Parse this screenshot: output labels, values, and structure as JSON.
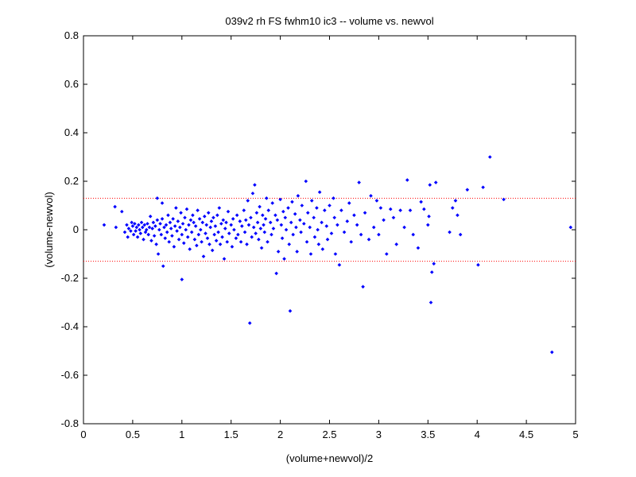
{
  "chart_data": {
    "type": "scatter",
    "title": "039v2 rh FS fwhm10 ic3 -- volume vs. newvol",
    "xlabel": "(volume+newvol)/2",
    "ylabel": "(volume-newvol)",
    "xlim": [
      0,
      5
    ],
    "ylim": [
      -0.8,
      0.8
    ],
    "xticks": [
      0,
      0.5,
      1,
      1.5,
      2,
      2.5,
      3,
      3.5,
      4,
      4.5,
      5
    ],
    "xtick_labels": [
      "0",
      "0.5",
      "1",
      "1.5",
      "2",
      "2.5",
      "3",
      "3.5",
      "4",
      "4.5",
      "5"
    ],
    "yticks": [
      -0.8,
      -0.6,
      -0.4,
      -0.2,
      0,
      0.2,
      0.4,
      0.6,
      0.8
    ],
    "ytick_labels": [
      "-0.8",
      "-0.6",
      "-0.4",
      "-0.2",
      "0",
      "0.2",
      "0.4",
      "0.6",
      "0.8"
    ],
    "grid": false,
    "marker_color": "#0000ff",
    "reference_line_color": "#ff0000",
    "reference_lines": [
      0.13,
      -0.13
    ],
    "points": [
      [
        0.21,
        0.02
      ],
      [
        0.32,
        0.095
      ],
      [
        0.33,
        0.01
      ],
      [
        0.39,
        0.075
      ],
      [
        0.42,
        -0.01
      ],
      [
        0.44,
        0.02
      ],
      [
        0.45,
        -0.03
      ],
      [
        0.46,
        0.005
      ],
      [
        0.48,
        -0.005
      ],
      [
        0.49,
        0.03
      ],
      [
        0.5,
        0.015
      ],
      [
        0.51,
        -0.02
      ],
      [
        0.52,
        0.025
      ],
      [
        0.53,
        -0.005
      ],
      [
        0.54,
        0.01
      ],
      [
        0.55,
        -0.03
      ],
      [
        0.56,
        0.02
      ],
      [
        0.57,
        0.0
      ],
      [
        0.58,
        -0.015
      ],
      [
        0.59,
        0.03
      ],
      [
        0.6,
        0.01
      ],
      [
        0.61,
        -0.04
      ],
      [
        0.62,
        0.02
      ],
      [
        0.63,
        -0.01
      ],
      [
        0.64,
        0.0
      ],
      [
        0.65,
        0.025
      ],
      [
        0.66,
        -0.02
      ],
      [
        0.67,
        0.01
      ],
      [
        0.68,
        0.055
      ],
      [
        0.69,
        -0.045
      ],
      [
        0.7,
        0.005
      ],
      [
        0.71,
        0.03
      ],
      [
        0.72,
        -0.025
      ],
      [
        0.73,
        0.015
      ],
      [
        0.74,
        -0.06
      ],
      [
        0.75,
        0.13
      ],
      [
        0.75,
        0.04
      ],
      [
        0.76,
        -0.1
      ],
      [
        0.77,
        0.0
      ],
      [
        0.78,
        0.025
      ],
      [
        0.79,
        -0.02
      ],
      [
        0.8,
        0.11
      ],
      [
        0.8,
        0.045
      ],
      [
        0.81,
        -0.15
      ],
      [
        0.82,
        0.01
      ],
      [
        0.83,
        -0.035
      ],
      [
        0.84,
        0.02
      ],
      [
        0.85,
        -0.01
      ],
      [
        0.86,
        0.06
      ],
      [
        0.87,
        -0.05
      ],
      [
        0.88,
        0.03
      ],
      [
        0.89,
        0.005
      ],
      [
        0.9,
        -0.025
      ],
      [
        0.91,
        0.045
      ],
      [
        0.92,
        -0.07
      ],
      [
        0.93,
        0.015
      ],
      [
        0.94,
        0.09
      ],
      [
        0.95,
        -0.005
      ],
      [
        0.96,
        0.035
      ],
      [
        0.97,
        -0.04
      ],
      [
        0.98,
        0.01
      ],
      [
        0.99,
        0.07
      ],
      [
        1.0,
        -0.02
      ],
      [
        1.0,
        -0.205
      ],
      [
        1.01,
        0.025
      ],
      [
        1.02,
        -0.055
      ],
      [
        1.03,
        0.05
      ],
      [
        1.04,
        0.0
      ],
      [
        1.05,
        0.085
      ],
      [
        1.06,
        -0.03
      ],
      [
        1.07,
        0.02
      ],
      [
        1.08,
        -0.08
      ],
      [
        1.09,
        0.04
      ],
      [
        1.1,
        -0.01
      ],
      [
        1.11,
        0.06
      ],
      [
        1.12,
        0.03
      ],
      [
        1.13,
        -0.04
      ],
      [
        1.14,
        0.015
      ],
      [
        1.15,
        -0.065
      ],
      [
        1.16,
        0.08
      ],
      [
        1.17,
        -0.02
      ],
      [
        1.18,
        0.045
      ],
      [
        1.19,
        0.0
      ],
      [
        1.2,
        -0.05
      ],
      [
        1.21,
        0.03
      ],
      [
        1.22,
        -0.11
      ],
      [
        1.23,
        0.055
      ],
      [
        1.24,
        -0.015
      ],
      [
        1.25,
        0.02
      ],
      [
        1.26,
        -0.035
      ],
      [
        1.27,
        0.07
      ],
      [
        1.28,
        -0.06
      ],
      [
        1.29,
        0.01
      ],
      [
        1.3,
        0.035
      ],
      [
        1.31,
        -0.085
      ],
      [
        1.32,
        0.05
      ],
      [
        1.33,
        -0.02
      ],
      [
        1.34,
        0.015
      ],
      [
        1.35,
        -0.045
      ],
      [
        1.36,
        0.06
      ],
      [
        1.37,
        -0.01
      ],
      [
        1.38,
        0.09
      ],
      [
        1.39,
        -0.06
      ],
      [
        1.4,
        0.025
      ],
      [
        1.41,
        -0.03
      ],
      [
        1.42,
        0.04
      ],
      [
        1.43,
        -0.12
      ],
      [
        1.44,
        0.005
      ],
      [
        1.45,
        0.03
      ],
      [
        1.46,
        -0.05
      ],
      [
        1.47,
        0.075
      ],
      [
        1.48,
        -0.015
      ],
      [
        1.5,
        0.02
      ],
      [
        1.51,
        -0.07
      ],
      [
        1.52,
        0.045
      ],
      [
        1.53,
        0.0
      ],
      [
        1.55,
        -0.035
      ],
      [
        1.56,
        0.06
      ],
      [
        1.57,
        -0.02
      ],
      [
        1.59,
        0.035
      ],
      [
        1.6,
        -0.05
      ],
      [
        1.61,
        0.015
      ],
      [
        1.63,
        0.08
      ],
      [
        1.64,
        -0.01
      ],
      [
        1.65,
        0.04
      ],
      [
        1.66,
        -0.06
      ],
      [
        1.67,
        0.12
      ],
      [
        1.68,
        0.02
      ],
      [
        1.69,
        -0.385
      ],
      [
        1.7,
        0.05
      ],
      [
        1.71,
        -0.03
      ],
      [
        1.72,
        0.15
      ],
      [
        1.73,
        0.01
      ],
      [
        1.74,
        0.185
      ],
      [
        1.75,
        -0.015
      ],
      [
        1.76,
        0.07
      ],
      [
        1.77,
        0.03
      ],
      [
        1.78,
        -0.04
      ],
      [
        1.79,
        0.095
      ],
      [
        1.8,
        0.005
      ],
      [
        1.81,
        -0.075
      ],
      [
        1.82,
        0.06
      ],
      [
        1.83,
        0.02
      ],
      [
        1.84,
        -0.01
      ],
      [
        1.85,
        0.045
      ],
      [
        1.86,
        0.13
      ],
      [
        1.87,
        -0.05
      ],
      [
        1.88,
        0.08
      ],
      [
        1.9,
        0.03
      ],
      [
        1.91,
        -0.02
      ],
      [
        1.92,
        0.11
      ],
      [
        1.93,
        0.005
      ],
      [
        1.95,
        0.06
      ],
      [
        1.96,
        -0.18
      ],
      [
        1.97,
        0.04
      ],
      [
        1.98,
        -0.09
      ],
      [
        2.0,
        0.125
      ],
      [
        2.01,
        0.02
      ],
      [
        2.02,
        -0.035
      ],
      [
        2.03,
        0.075
      ],
      [
        2.04,
        -0.12
      ],
      [
        2.05,
        0.05
      ],
      [
        2.06,
        0.0
      ],
      [
        2.08,
        0.09
      ],
      [
        2.09,
        -0.06
      ],
      [
        2.1,
        -0.335
      ],
      [
        2.11,
        0.03
      ],
      [
        2.12,
        0.115
      ],
      [
        2.13,
        -0.02
      ],
      [
        2.15,
        0.065
      ],
      [
        2.16,
        0.01
      ],
      [
        2.17,
        -0.09
      ],
      [
        2.18,
        0.14
      ],
      [
        2.2,
        0.04
      ],
      [
        2.21,
        -0.01
      ],
      [
        2.22,
        0.1
      ],
      [
        2.24,
        0.025
      ],
      [
        2.26,
        0.2
      ],
      [
        2.27,
        -0.05
      ],
      [
        2.28,
        0.07
      ],
      [
        2.3,
        0.01
      ],
      [
        2.31,
        -0.1
      ],
      [
        2.32,
        0.12
      ],
      [
        2.34,
        0.05
      ],
      [
        2.35,
        -0.03
      ],
      [
        2.37,
        0.09
      ],
      [
        2.38,
        0.0
      ],
      [
        2.39,
        -0.06
      ],
      [
        2.4,
        0.155
      ],
      [
        2.42,
        0.03
      ],
      [
        2.43,
        -0.08
      ],
      [
        2.45,
        0.08
      ],
      [
        2.47,
        0.015
      ],
      [
        2.48,
        -0.04
      ],
      [
        2.5,
        0.1
      ],
      [
        2.52,
        -0.015
      ],
      [
        2.54,
        0.13
      ],
      [
        2.55,
        0.05
      ],
      [
        2.56,
        -0.1
      ],
      [
        2.58,
        0.02
      ],
      [
        2.6,
        -0.145
      ],
      [
        2.62,
        0.08
      ],
      [
        2.65,
        -0.01
      ],
      [
        2.68,
        0.035
      ],
      [
        2.7,
        0.11
      ],
      [
        2.72,
        -0.05
      ],
      [
        2.75,
        0.06
      ],
      [
        2.78,
        0.02
      ],
      [
        2.8,
        0.195
      ],
      [
        2.82,
        -0.02
      ],
      [
        2.84,
        -0.235
      ],
      [
        2.86,
        0.07
      ],
      [
        2.9,
        -0.04
      ],
      [
        2.92,
        0.14
      ],
      [
        2.95,
        0.01
      ],
      [
        2.98,
        0.12
      ],
      [
        3.0,
        -0.02
      ],
      [
        3.02,
        0.09
      ],
      [
        3.05,
        0.04
      ],
      [
        3.08,
        -0.1
      ],
      [
        3.12,
        0.085
      ],
      [
        3.15,
        0.05
      ],
      [
        3.18,
        -0.06
      ],
      [
        3.22,
        0.08
      ],
      [
        3.26,
        0.01
      ],
      [
        3.29,
        0.205
      ],
      [
        3.32,
        0.08
      ],
      [
        3.35,
        -0.02
      ],
      [
        3.4,
        -0.075
      ],
      [
        3.43,
        0.115
      ],
      [
        3.46,
        0.085
      ],
      [
        3.5,
        0.02
      ],
      [
        3.51,
        0.055
      ],
      [
        3.52,
        0.185
      ],
      [
        3.53,
        -0.3
      ],
      [
        3.54,
        -0.175
      ],
      [
        3.56,
        -0.14
      ],
      [
        3.58,
        0.195
      ],
      [
        3.72,
        -0.01
      ],
      [
        3.75,
        0.09
      ],
      [
        3.78,
        0.12
      ],
      [
        3.8,
        0.06
      ],
      [
        3.83,
        -0.02
      ],
      [
        3.9,
        0.165
      ],
      [
        4.01,
        -0.145
      ],
      [
        4.06,
        0.175
      ],
      [
        4.13,
        0.3
      ],
      [
        4.27,
        0.125
      ],
      [
        4.76,
        -0.505
      ],
      [
        4.95,
        0.01
      ]
    ]
  }
}
